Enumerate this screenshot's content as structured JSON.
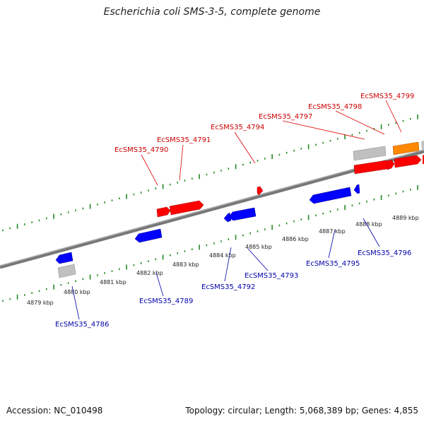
{
  "title": "Escherichia coli SMS-3-5, complete genome",
  "footer": {
    "accession": "Accession: NC_010498",
    "topology": "Topology: circular; Length: 5,068,389 bp; Genes: 4,855"
  },
  "colors": {
    "forward_gene": "#ff0000",
    "reverse_gene": "#0000ff",
    "forward_label": "#cc0000",
    "reverse_label": "#0000aa",
    "rrna_like": "#ff8800",
    "pseudo_like": "#bbbbbb",
    "backbone": "#888888",
    "ticks": "#228822"
  },
  "tick_labels": [
    "4879 kbp",
    "4880 kbp",
    "4881 kbp",
    "4882 kbp",
    "4883 kbp",
    "4884 kbp",
    "4885 kbp",
    "4886 kbp",
    "4887 kbp",
    "4888 kbp",
    "4889 kbp"
  ],
  "gene_labels": {
    "forward": [
      "EcSMS35_4790",
      "EcSMS35_4791",
      "EcSMS35_4794",
      "EcSMS35_4797",
      "EcSMS35_4798",
      "EcSMS35_4799"
    ],
    "reverse": [
      "EcSMS35_4786",
      "EcSMS35_4789",
      "EcSMS35_4792",
      "EcSMS35_4793",
      "EcSMS35_4795",
      "EcSMS35_4796"
    ]
  }
}
